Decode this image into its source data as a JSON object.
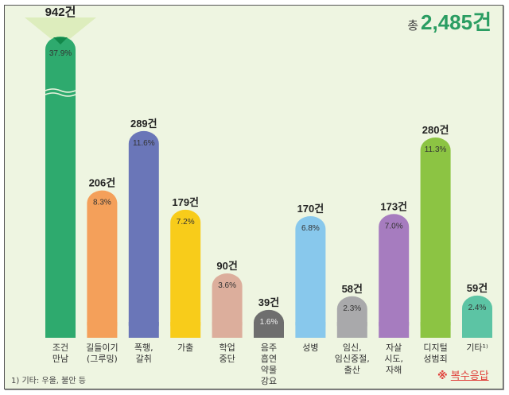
{
  "chart_data": {
    "type": "bar",
    "total_prefix": "총",
    "total": "2,485건",
    "categories": [
      "조건\n만남",
      "길들이기\n(그루밍)",
      "폭행,\n갈취",
      "가출",
      "학업\n중단",
      "음주\n흡연\n약물\n강요",
      "성병",
      "임신,\n임신중절,\n출산",
      "자살\n시도,\n자해",
      "디지털\n성범죄",
      "기타¹⁾"
    ],
    "values": [
      942,
      206,
      289,
      179,
      90,
      39,
      170,
      58,
      173,
      280,
      59
    ],
    "value_labels": [
      "942건",
      "206건",
      "289건",
      "179건",
      "90건",
      "39건",
      "170건",
      "58건",
      "173건",
      "280건",
      "59건"
    ],
    "percent_labels": [
      "37.9%",
      "8.3%",
      "11.6%",
      "7.2%",
      "3.6%",
      "1.6%",
      "6.8%",
      "2.3%",
      "7.0%",
      "11.3%",
      "2.4%"
    ],
    "colors": [
      "#2eaa6e",
      "#f4a05a",
      "#6a76b8",
      "#f8cc1a",
      "#dcae9c",
      "#6e6e6e",
      "#88c8ec",
      "#a9a9ab",
      "#a67cbf",
      "#8cc443",
      "#5cc4a4"
    ],
    "axis_break_on_first_bar": true,
    "grid": false,
    "footnote": "1) 기타: 우울, 불안 등",
    "note_mark": "※",
    "note": "복수응답"
  }
}
